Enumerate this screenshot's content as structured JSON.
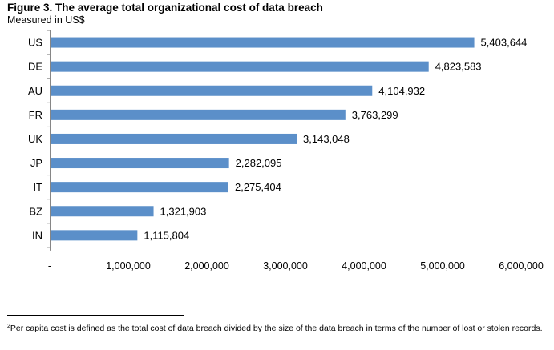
{
  "figure": {
    "title": "Figure 3. The average total organizational cost of data breach",
    "subtitle": "Measured in US$"
  },
  "chart_data": {
    "type": "bar",
    "orientation": "horizontal",
    "categories": [
      "US",
      "DE",
      "AU",
      "FR",
      "UK",
      "JP",
      "IT",
      "BZ",
      "IN"
    ],
    "values": [
      5403644,
      4823583,
      4104932,
      3763299,
      3143048,
      2282095,
      2275404,
      1321903,
      1115804
    ],
    "value_labels": [
      "5,403,644",
      "4,823,583",
      "4,104,932",
      "3,763,299",
      "3,143,048",
      "2,282,095",
      "2,275,404",
      "1,321,903",
      "1,115,804"
    ],
    "x_ticks": [
      0,
      1000000,
      2000000,
      3000000,
      4000000,
      5000000,
      6000000
    ],
    "x_tick_labels": [
      "-",
      "1,000,000",
      "2,000,000",
      "3,000,000",
      "4,000,000",
      "5,000,000",
      "6,000,000"
    ],
    "xlim": [
      0,
      6000000
    ],
    "grid": false,
    "legend": "none",
    "bar_color": "#5b8fc9"
  },
  "footnote": {
    "marker": "2",
    "text": "Per capita cost is defined as the total cost of data breach divided by the size of the data breach in terms of the number of lost or stolen records."
  }
}
